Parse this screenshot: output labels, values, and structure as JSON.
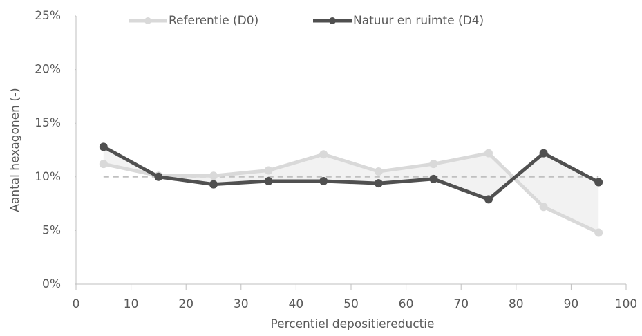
{
  "chart_data": {
    "type": "line",
    "xlabel": "Percentiel depositiereductie",
    "ylabel": "Aantal hexagonen (-)",
    "x": [
      5,
      15,
      25,
      35,
      45,
      55,
      65,
      75,
      85,
      95
    ],
    "series": [
      {
        "name": "Referentie (D0)",
        "color": "#d9d9d9",
        "values": [
          11.2,
          10.1,
          10.1,
          10.6,
          12.1,
          10.5,
          11.2,
          12.2,
          7.2,
          4.8
        ]
      },
      {
        "name": "Natuur en ruimte (D4)",
        "color": "#505050",
        "values": [
          12.8,
          10.0,
          9.3,
          9.6,
          9.6,
          9.4,
          9.8,
          7.9,
          12.2,
          9.5
        ]
      }
    ],
    "hline": 10,
    "xlim": [
      0,
      100
    ],
    "xticks": [
      0,
      10,
      20,
      30,
      40,
      50,
      60,
      70,
      80,
      90,
      100
    ],
    "ylim": [
      0,
      25
    ],
    "yticks": [
      {
        "value": 0,
        "label": "0%"
      },
      {
        "value": 5,
        "label": "5%"
      },
      {
        "value": 10,
        "label": "10%"
      },
      {
        "value": 15,
        "label": "15%"
      },
      {
        "value": 20,
        "label": "20%"
      },
      {
        "value": 25,
        "label": "25%"
      }
    ],
    "fill_between": true,
    "legend": "top"
  }
}
